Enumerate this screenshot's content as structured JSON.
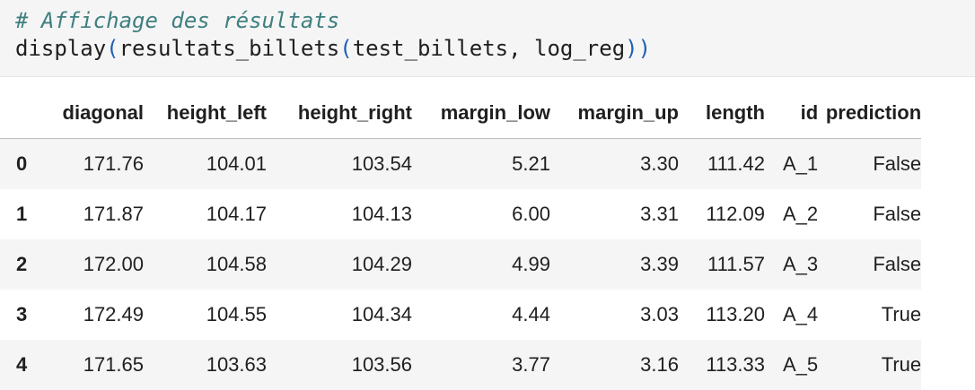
{
  "code": {
    "comment": "# Affichage des résultats",
    "line2": {
      "func": "display",
      "open1": "(",
      "inner": "resultats_billets",
      "open2": "(",
      "args": "test_billets, log_reg",
      "close2": ")",
      "close1": ")"
    }
  },
  "table": {
    "columns": [
      "",
      "diagonal",
      "height_left",
      "height_right",
      "margin_low",
      "margin_up",
      "length",
      "id",
      "prediction"
    ],
    "rows": [
      {
        "index": "0",
        "cells": [
          "171.76",
          "104.01",
          "103.54",
          "5.21",
          "3.30",
          "111.42",
          "A_1",
          "False"
        ]
      },
      {
        "index": "1",
        "cells": [
          "171.87",
          "104.17",
          "104.13",
          "6.00",
          "3.31",
          "112.09",
          "A_2",
          "False"
        ]
      },
      {
        "index": "2",
        "cells": [
          "172.00",
          "104.58",
          "104.29",
          "4.99",
          "3.39",
          "111.57",
          "A_3",
          "False"
        ]
      },
      {
        "index": "3",
        "cells": [
          "172.49",
          "104.55",
          "104.34",
          "4.44",
          "3.03",
          "113.20",
          "A_4",
          "True"
        ]
      },
      {
        "index": "4",
        "cells": [
          "171.65",
          "103.63",
          "103.56",
          "3.77",
          "3.16",
          "113.33",
          "A_5",
          "True"
        ]
      }
    ]
  },
  "colors": {
    "comment": "#3f7f7f",
    "paren": "#1f5fb3",
    "stripe": "#f5f5f5"
  }
}
